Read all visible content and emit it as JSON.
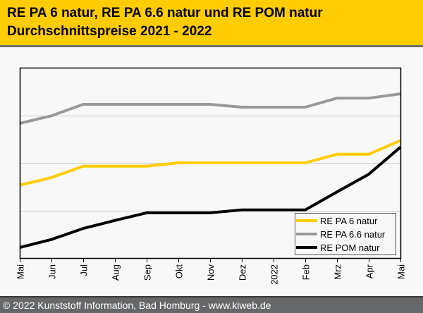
{
  "header": {
    "title_line1": "RE PA 6 natur, RE PA 6.6 natur und RE POM natur",
    "title_line2": "Durchschnittspreise 2021 - 2022"
  },
  "footer": {
    "text": "© 2022 Kunststoff Information, Bad Homburg - www.kiweb.de"
  },
  "chart_data": {
    "type": "line",
    "title": "RE PA 6 natur, RE PA 6.6 natur und RE POM natur Durchschnittspreise 2021 - 2022",
    "xlabel": "",
    "ylabel": "",
    "categories": [
      "Mai",
      "Jun",
      "Jul",
      "Aug",
      "Sep",
      "Okt",
      "Nov",
      "Dez",
      "2022",
      "Feb",
      "Mrz",
      "Apr",
      "Mai"
    ],
    "ylim": [
      0,
      4
    ],
    "y_tick_labels_shown": false,
    "grid": "horizontal",
    "legend_position": "bottom-right",
    "series": [
      {
        "name": "RE PA 6 natur",
        "color": "#ffcc00",
        "values": [
          1.53,
          1.69,
          1.93,
          1.93,
          1.93,
          2.0,
          2.0,
          2.0,
          2.0,
          2.0,
          2.18,
          2.18,
          2.47
        ]
      },
      {
        "name": "RE PA 6.6 natur",
        "color": "#999999",
        "values": [
          2.83,
          2.99,
          3.23,
          3.23,
          3.23,
          3.23,
          3.23,
          3.17,
          3.17,
          3.17,
          3.36,
          3.36,
          3.45
        ]
      },
      {
        "name": "RE POM natur",
        "color": "#000000",
        "values": [
          0.22,
          0.39,
          0.62,
          0.79,
          0.95,
          0.95,
          0.95,
          1.01,
          1.01,
          1.01,
          1.39,
          1.76,
          2.33
        ]
      }
    ]
  }
}
